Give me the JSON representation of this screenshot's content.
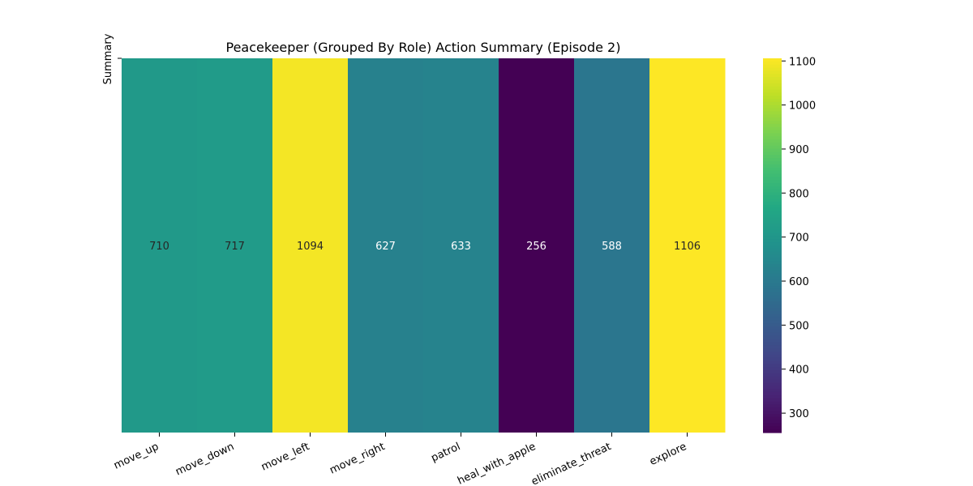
{
  "chart_data": {
    "type": "heatmap",
    "title": "Peacekeeper (Grouped By Role) Action Summary (Episode 2)",
    "ylabel": "Summary",
    "xlabel": "",
    "categories": [
      "move_up",
      "move_down",
      "move_left",
      "move_right",
      "patrol",
      "heal_with_apple",
      "eliminate_threat",
      "explore"
    ],
    "values": [
      710,
      717,
      1094,
      627,
      633,
      256,
      588,
      1106
    ],
    "colormap": "viridis",
    "colorbar": {
      "range": [
        256,
        1106
      ],
      "ticks": [
        300,
        400,
        500,
        600,
        700,
        800,
        900,
        1000,
        1100
      ]
    },
    "grid": false,
    "legend": "colorbar-right"
  }
}
